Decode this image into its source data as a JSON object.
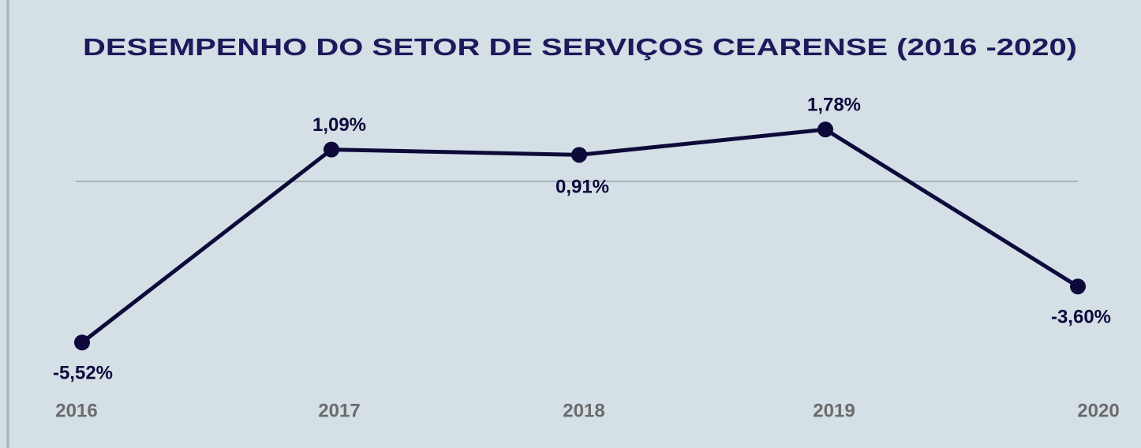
{
  "chart_data": {
    "type": "line",
    "title": "DESEMPENHO DO SETOR DE SERVIÇOS CEARENSE  (2016 -2020)",
    "categories": [
      "2016",
      "2017",
      "2018",
      "2019",
      "2020"
    ],
    "series": [
      {
        "name": "Setor de serviços",
        "color": "#0d0a3a",
        "values": [
          -5.52,
          1.09,
          0.91,
          1.78,
          -3.6
        ],
        "value_labels": [
          "-5,52%",
          "1,09%",
          "0,91%",
          "1,78%",
          "-3,60%"
        ]
      }
    ],
    "ylim": [
      -6,
      2
    ]
  }
}
